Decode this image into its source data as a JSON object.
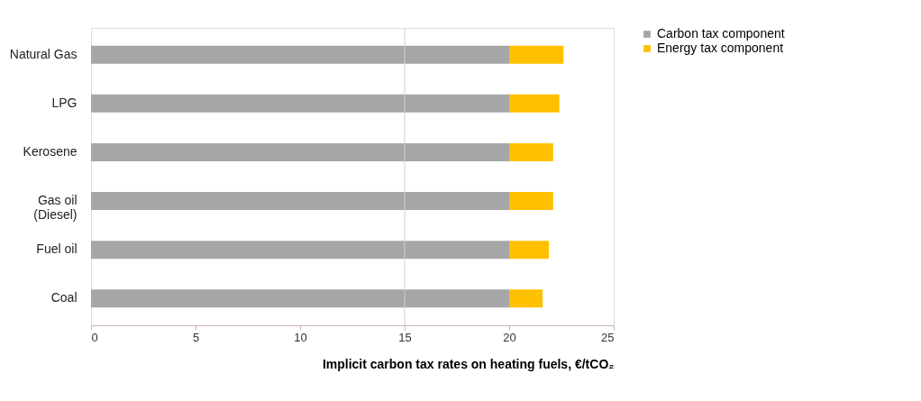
{
  "chart_data": {
    "type": "bar",
    "orientation": "horizontal",
    "stacked": true,
    "xlabel": "Implicit carbon tax rates on heating fuels, €/tCO₂",
    "categories": [
      "Natural Gas",
      "LPG",
      "Kerosene",
      "Gas oil\n(Diesel)",
      "Fuel oil",
      "Coal"
    ],
    "series": [
      {
        "name": "Carbon tax component",
        "color": "#a6a6a6",
        "values": [
          20,
          20,
          20,
          20,
          20,
          20
        ]
      },
      {
        "name": "Energy tax component",
        "color": "#ffc000",
        "values": [
          2.6,
          2.4,
          2.1,
          2.1,
          1.9,
          1.6
        ]
      }
    ],
    "xlim": [
      0,
      25
    ],
    "xticks": [
      0,
      5,
      10,
      15,
      20,
      25
    ],
    "ref_lines": [
      {
        "axis": "x",
        "value": 15,
        "color": "#d0d0d0"
      }
    ],
    "grid": false,
    "legend": "top right"
  }
}
